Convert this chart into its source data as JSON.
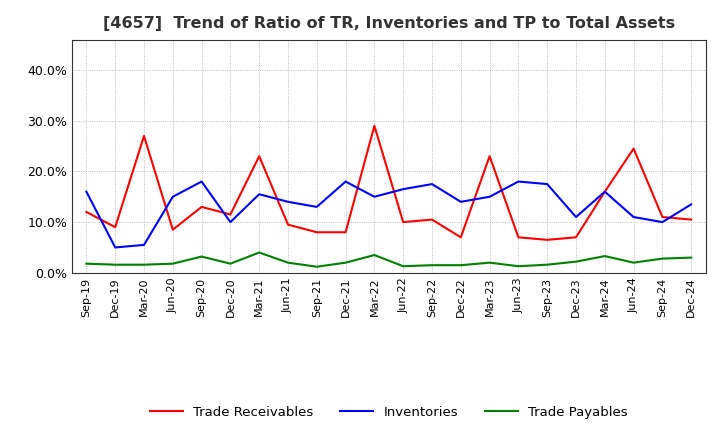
{
  "title": "[4657]  Trend of Ratio of TR, Inventories and TP to Total Assets",
  "x_labels": [
    "Sep-19",
    "Dec-19",
    "Mar-20",
    "Jun-20",
    "Sep-20",
    "Dec-20",
    "Mar-21",
    "Jun-21",
    "Sep-21",
    "Dec-21",
    "Mar-22",
    "Jun-22",
    "Sep-22",
    "Dec-22",
    "Mar-23",
    "Jun-23",
    "Sep-23",
    "Dec-23",
    "Mar-24",
    "Jun-24",
    "Sep-24",
    "Dec-24"
  ],
  "trade_receivables": [
    0.12,
    0.09,
    0.27,
    0.085,
    0.13,
    0.115,
    0.23,
    0.095,
    0.08,
    0.08,
    0.29,
    0.1,
    0.105,
    0.07,
    0.23,
    0.07,
    0.065,
    0.07,
    0.16,
    0.245,
    0.11,
    0.105
  ],
  "inventories": [
    0.16,
    0.05,
    0.055,
    0.15,
    0.18,
    0.1,
    0.155,
    0.14,
    0.13,
    0.18,
    0.15,
    0.165,
    0.175,
    0.14,
    0.15,
    0.18,
    0.175,
    0.11,
    0.16,
    0.11,
    0.1,
    0.135
  ],
  "trade_payables": [
    0.018,
    0.016,
    0.016,
    0.018,
    0.032,
    0.018,
    0.04,
    0.02,
    0.012,
    0.02,
    0.035,
    0.013,
    0.015,
    0.015,
    0.02,
    0.013,
    0.016,
    0.022,
    0.033,
    0.02,
    0.028,
    0.03
  ],
  "tr_color": "#ff0000",
  "inv_color": "#0000ff",
  "tp_color": "#008000",
  "ylim": [
    0.0,
    0.46
  ],
  "yticks": [
    0.0,
    0.1,
    0.2,
    0.3,
    0.4
  ],
  "legend_labels": [
    "Trade Receivables",
    "Inventories",
    "Trade Payables"
  ],
  "bg_color": "#ffffff",
  "grid_color": "#aaaaaa"
}
